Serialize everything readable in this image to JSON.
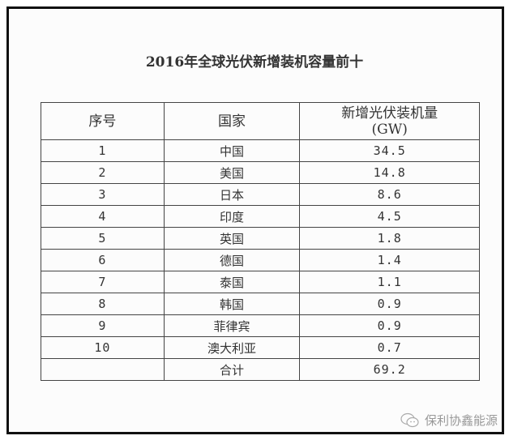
{
  "title": "2016年全球光伏新增装机容量前十",
  "table": {
    "headers": [
      "序号",
      "国家",
      "新增光伏装机量",
      "(GW)"
    ],
    "rows": [
      {
        "no": "1",
        "country": "中国",
        "value": "34.5"
      },
      {
        "no": "2",
        "country": "美国",
        "value": "14.8"
      },
      {
        "no": "3",
        "country": "日本",
        "value": "8.6"
      },
      {
        "no": "4",
        "country": "印度",
        "value": "4.5"
      },
      {
        "no": "5",
        "country": "英国",
        "value": "1.8"
      },
      {
        "no": "6",
        "country": "德国",
        "value": "1.4"
      },
      {
        "no": "7",
        "country": "泰国",
        "value": "1.1"
      },
      {
        "no": "8",
        "country": "韩国",
        "value": "0.9"
      },
      {
        "no": "9",
        "country": "菲律宾",
        "value": "0.9"
      },
      {
        "no": "10",
        "country": "澳大利亚",
        "value": "0.7"
      }
    ],
    "total": {
      "no": "",
      "country": "合计",
      "value": "69.2"
    }
  },
  "watermark": {
    "icon": "wechat-icon",
    "text": "保利协鑫能源"
  }
}
